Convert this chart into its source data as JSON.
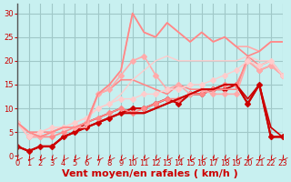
{
  "title": "",
  "xlabel": "Vent moyen/en rafales ( km/h )",
  "ylabel": "",
  "background_color": "#c8f0f0",
  "grid_color": "#a0c8c8",
  "xlim": [
    0,
    23
  ],
  "ylim": [
    0,
    32
  ],
  "yticks": [
    0,
    5,
    10,
    15,
    20,
    25,
    30
  ],
  "xticks": [
    0,
    1,
    2,
    3,
    4,
    5,
    6,
    7,
    8,
    9,
    10,
    11,
    12,
    13,
    14,
    15,
    16,
    17,
    18,
    19,
    20,
    21,
    22,
    23
  ],
  "series": [
    {
      "x": [
        0,
        1,
        2,
        3,
        4,
        5,
        6,
        7,
        8,
        9,
        10,
        11,
        12,
        13,
        14,
        15,
        16,
        17,
        18,
        19,
        20,
        21,
        22,
        23
      ],
      "y": [
        2,
        1,
        2,
        2,
        4,
        5,
        6,
        7,
        8,
        9,
        10,
        10,
        11,
        12,
        11,
        13,
        13,
        14,
        14,
        15,
        11,
        15,
        4,
        4
      ],
      "color": "#cc0000",
      "linewidth": 1.5,
      "marker": "D",
      "markersize": 3,
      "linestyle": "-"
    },
    {
      "x": [
        0,
        1,
        2,
        3,
        4,
        5,
        6,
        7,
        8,
        9,
        10,
        11,
        12,
        13,
        14,
        15,
        16,
        17,
        18,
        19,
        20,
        21,
        22,
        23
      ],
      "y": [
        2,
        1,
        2,
        2,
        4,
        5,
        7,
        8,
        9,
        10,
        9,
        9,
        10,
        11,
        12,
        13,
        14,
        14,
        15,
        15,
        12,
        15,
        6,
        4
      ],
      "color": "#cc0000",
      "linewidth": 1.2,
      "marker": null,
      "markersize": 0,
      "linestyle": "-"
    },
    {
      "x": [
        0,
        1,
        2,
        3,
        4,
        5,
        6,
        7,
        8,
        9,
        10,
        11,
        12,
        13,
        14,
        15,
        16,
        17,
        18,
        19,
        20,
        21,
        22,
        23
      ],
      "y": [
        7,
        4,
        4,
        4,
        5,
        6,
        7,
        8,
        9,
        10,
        9,
        10,
        11,
        12,
        12,
        13,
        13,
        14,
        15,
        15,
        20,
        18,
        19,
        17
      ],
      "color": "#ff8888",
      "linewidth": 1.2,
      "marker": "D",
      "markersize": 3,
      "linestyle": "-"
    },
    {
      "x": [
        0,
        1,
        2,
        3,
        4,
        5,
        6,
        7,
        8,
        9,
        10,
        11,
        12,
        13,
        14,
        15,
        16,
        17,
        18,
        19,
        20,
        21,
        22,
        23
      ],
      "y": [
        7,
        5,
        5,
        5,
        6,
        6,
        7,
        13,
        14,
        16,
        16,
        15,
        14,
        13,
        15,
        14,
        14,
        14,
        14,
        14,
        21,
        19,
        20,
        17
      ],
      "color": "#ff8888",
      "linewidth": 1.2,
      "marker": null,
      "markersize": 0,
      "linestyle": "-"
    },
    {
      "x": [
        0,
        1,
        2,
        3,
        4,
        5,
        6,
        7,
        8,
        9,
        10,
        11,
        12,
        13,
        14,
        15,
        16,
        17,
        18,
        19,
        20,
        21,
        22,
        23
      ],
      "y": [
        7,
        4,
        4,
        5,
        6,
        6,
        7,
        13,
        14,
        17,
        20,
        21,
        17,
        14,
        15,
        13,
        14,
        13,
        13,
        13,
        20,
        18,
        19,
        17
      ],
      "color": "#ffaaaa",
      "linewidth": 1.2,
      "marker": "D",
      "markersize": 3,
      "linestyle": "-"
    },
    {
      "x": [
        0,
        1,
        2,
        3,
        4,
        5,
        6,
        7,
        8,
        9,
        10,
        11,
        12,
        13,
        14,
        15,
        16,
        17,
        18,
        19,
        20,
        21,
        22,
        23
      ],
      "y": [
        2,
        1,
        2,
        2,
        4,
        5,
        6,
        7,
        8,
        9,
        9,
        9,
        10,
        11,
        12,
        13,
        14,
        14,
        15,
        15,
        11,
        15,
        4,
        4
      ],
      "color": "#cc0000",
      "linewidth": 1.5,
      "marker": null,
      "markersize": 0,
      "linestyle": "-"
    },
    {
      "x": [
        0,
        1,
        2,
        3,
        4,
        5,
        6,
        7,
        8,
        9,
        10,
        11,
        12,
        13,
        14,
        15,
        16,
        17,
        18,
        19,
        20,
        21,
        22,
        23
      ],
      "y": [
        7,
        4,
        5,
        6,
        6,
        7,
        8,
        10,
        11,
        12,
        12,
        13,
        13,
        14,
        14,
        15,
        15,
        16,
        17,
        18,
        20,
        19,
        20,
        17
      ],
      "color": "#ffcccc",
      "linewidth": 1.0,
      "marker": "D",
      "markersize": 3,
      "linestyle": "-"
    },
    {
      "x": [
        0,
        1,
        2,
        3,
        4,
        5,
        6,
        7,
        8,
        9,
        10,
        11,
        12,
        13,
        14,
        15,
        16,
        17,
        18,
        19,
        20,
        21,
        22,
        23
      ],
      "y": [
        7,
        4,
        5,
        6,
        6,
        7,
        8,
        10,
        11,
        13,
        16,
        18,
        20,
        21,
        20,
        20,
        20,
        20,
        20,
        20,
        21,
        20,
        20,
        17
      ],
      "color": "#ffcccc",
      "linewidth": 1.0,
      "marker": null,
      "markersize": 0,
      "linestyle": "-"
    },
    {
      "x": [
        0,
        1,
        2,
        3,
        4,
        5,
        6,
        7,
        8,
        9,
        10,
        11,
        12,
        13,
        14,
        15,
        16,
        17,
        18,
        19,
        20,
        21,
        22,
        23
      ],
      "y": [
        7,
        5,
        4,
        5,
        6,
        6,
        6,
        13,
        15,
        18,
        30,
        26,
        25,
        28,
        26,
        24,
        26,
        24,
        25,
        23,
        23,
        22,
        24,
        24
      ],
      "color": "#ffaaaa",
      "linewidth": 1.2,
      "marker": null,
      "markersize": 0,
      "linestyle": "-"
    },
    {
      "x": [
        0,
        1,
        2,
        3,
        4,
        5,
        6,
        7,
        8,
        9,
        10,
        11,
        12,
        13,
        14,
        15,
        16,
        17,
        18,
        19,
        20,
        21,
        22,
        23
      ],
      "y": [
        7,
        5,
        4,
        5,
        6,
        6,
        7,
        13,
        15,
        18,
        30,
        26,
        25,
        28,
        26,
        24,
        26,
        24,
        25,
        23,
        21,
        22,
        24,
        24
      ],
      "color": "#ff8888",
      "linewidth": 1.2,
      "marker": null,
      "markersize": 0,
      "linestyle": "-"
    }
  ],
  "tick_fontsize": 6,
  "label_fontsize": 8
}
